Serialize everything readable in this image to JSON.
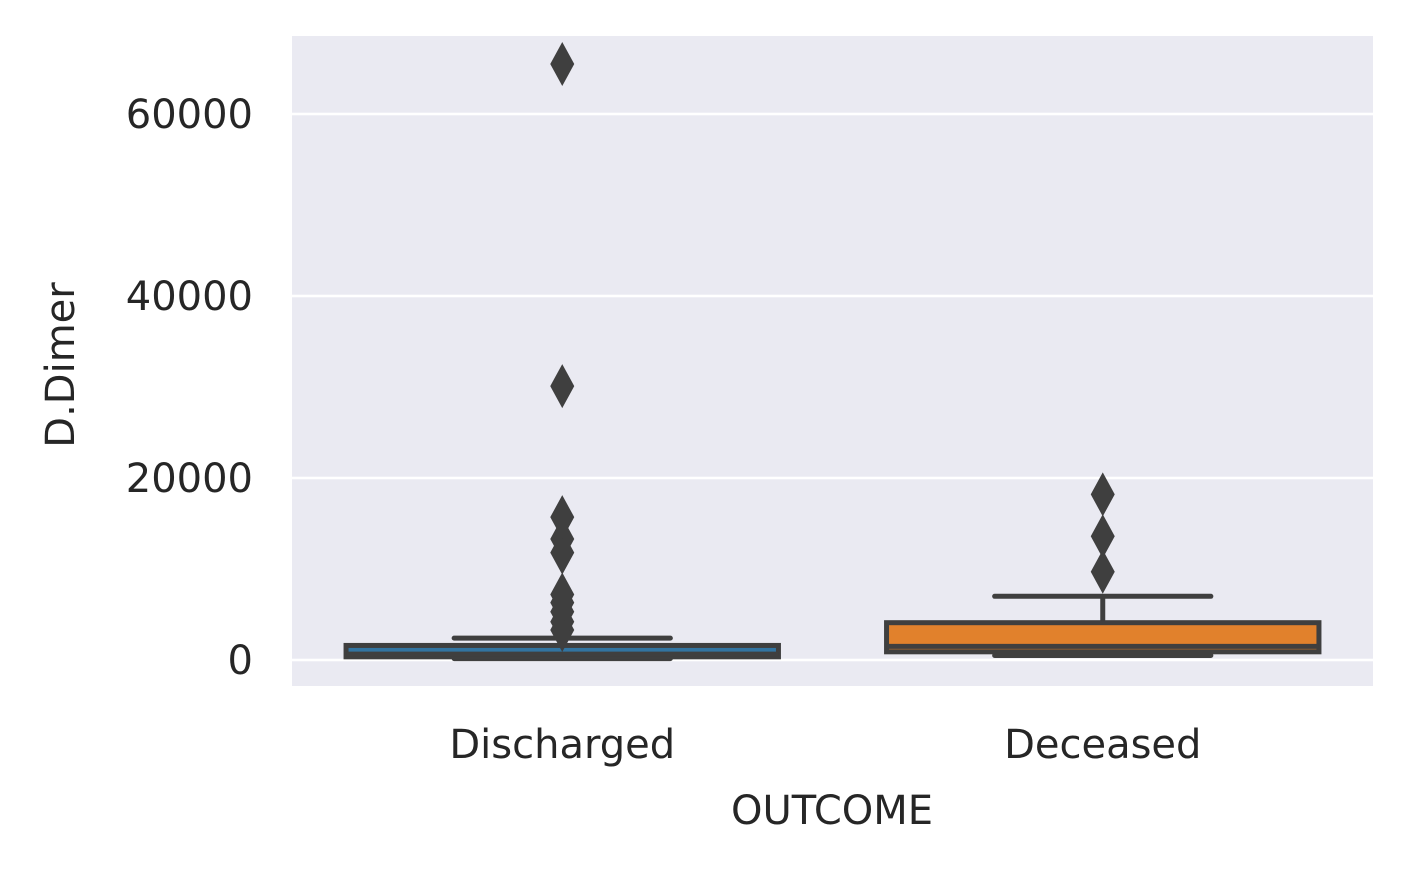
{
  "chart_data": {
    "type": "box",
    "xlabel": "OUTCOME",
    "ylabel": "D.Dimer",
    "ylim": [
      -2800,
      68500
    ],
    "yticks": [
      0,
      20000,
      40000,
      60000
    ],
    "grid": true,
    "categories": [
      "Discharged",
      "Deceased"
    ],
    "boxes": [
      {
        "category": "Discharged",
        "whisker_low": 150,
        "q1": 350,
        "median": 650,
        "q3": 1600,
        "whisker_high": 2400,
        "outliers": [
          3300,
          4200,
          5300,
          6300,
          7200,
          11800,
          13300,
          15700,
          30100,
          65500
        ],
        "color": "#3274a1"
      },
      {
        "category": "Deceased",
        "whisker_low": 500,
        "q1": 900,
        "median": 1500,
        "q3": 4100,
        "whisker_high": 7000,
        "outliers": [
          9700,
          13600,
          18200
        ],
        "color": "#e1812c"
      }
    ],
    "colors": {
      "background": "#eaeaf2",
      "grid": "#ffffff",
      "line": "#3f3f3f"
    }
  }
}
